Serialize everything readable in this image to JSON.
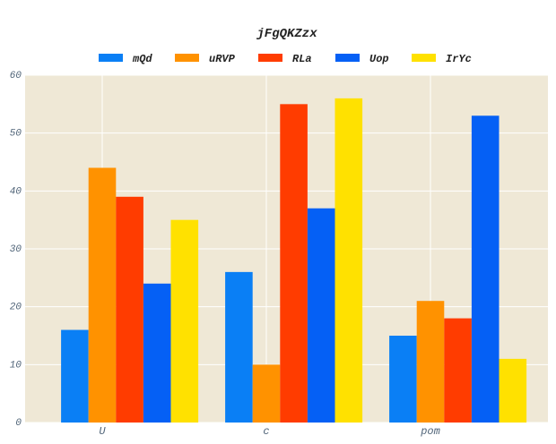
{
  "chart_data": {
    "type": "bar",
    "title": "jFgQKZzx",
    "xlabel": "",
    "ylabel": "",
    "categories": [
      "U",
      "c",
      "pom"
    ],
    "ylim": [
      0,
      60
    ],
    "yticks": [
      0,
      10,
      20,
      30,
      40,
      50,
      60
    ],
    "grid": true,
    "legend_position": "top",
    "background": "#efe8d6",
    "series": [
      {
        "name": "mQd",
        "color": "#0a7ff5",
        "values": [
          16,
          26,
          15
        ]
      },
      {
        "name": "uRVP",
        "color": "#ff9200",
        "values": [
          44,
          10,
          21
        ]
      },
      {
        "name": "RLa",
        "color": "#ff3c00",
        "values": [
          39,
          55,
          18
        ]
      },
      {
        "name": "Uop",
        "color": "#0560f5",
        "values": [
          24,
          37,
          53
        ]
      },
      {
        "name": "IrYc",
        "color": "#ffe100",
        "values": [
          35,
          56,
          11
        ]
      }
    ]
  }
}
